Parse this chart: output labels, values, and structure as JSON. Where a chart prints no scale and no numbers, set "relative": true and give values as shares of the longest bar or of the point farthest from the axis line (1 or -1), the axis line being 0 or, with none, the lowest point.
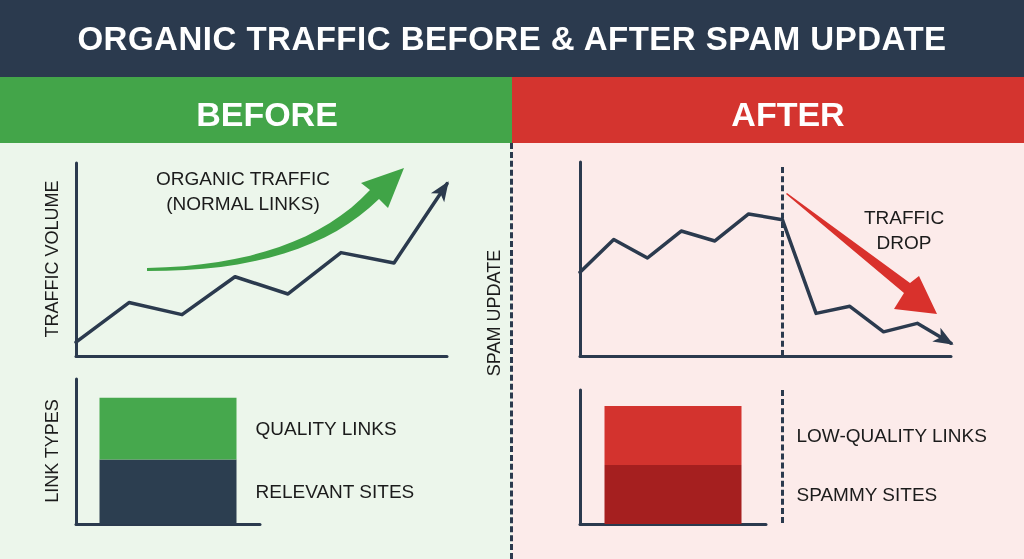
{
  "chart_data": [
    {
      "type": "other",
      "title": "ORGANIC TRAFFIC BEFORE & AFTER SPAM UPDATE"
    },
    {
      "type": "line",
      "title": "BEFORE",
      "ylabel": "TRAFFIC VOLUME",
      "annotations": [
        "ORGANIC TRAFFIC\n(NORMAL LINKS)"
      ],
      "relative": true,
      "tick_labels": false,
      "categories": [
        null,
        null,
        null,
        null,
        null,
        null,
        null,
        null
      ],
      "values": [
        0.08,
        0.31,
        0.24,
        0.46,
        0.36,
        0.6,
        0.54,
        1
      ],
      "color": "#2b3a4e"
    },
    {
      "type": "bar",
      "ylabel": "LINK TYPES",
      "stacked": true,
      "relative": true,
      "tick_labels": false,
      "categories": [
        null
      ],
      "series": [
        {
          "name": "RELEVANT SITES",
          "color": "#2c3e50",
          "values": [
            0.51
          ]
        },
        {
          "name": "QUALITY LINKS",
          "color": "#46a84d",
          "values": [
            0.49
          ]
        }
      ]
    },
    {
      "type": "line",
      "title": "AFTER",
      "annotations": [
        "TRAFFIC\nDROP",
        "SPAM UPDATE"
      ],
      "relative": true,
      "tick_labels": false,
      "categories": [
        null,
        null,
        null,
        null,
        null,
        null,
        null,
        null,
        null,
        null,
        null,
        null
      ],
      "values": [
        0.59,
        0.82,
        0.69,
        0.88,
        0.81,
        1,
        0.96,
        0.3,
        0.35,
        0.17,
        0.23,
        0.09
      ],
      "color": "#2b3a4e"
    },
    {
      "type": "bar",
      "stacked": true,
      "relative": true,
      "tick_labels": false,
      "categories": [
        null
      ],
      "series": [
        {
          "name": "SPAMMY SITES",
          "color": "#a51f1f",
          "values": [
            0.5
          ]
        },
        {
          "name": "LOW-QUALITY LINKS",
          "color": "#d3332e",
          "values": [
            0.5
          ]
        }
      ]
    }
  ]
}
